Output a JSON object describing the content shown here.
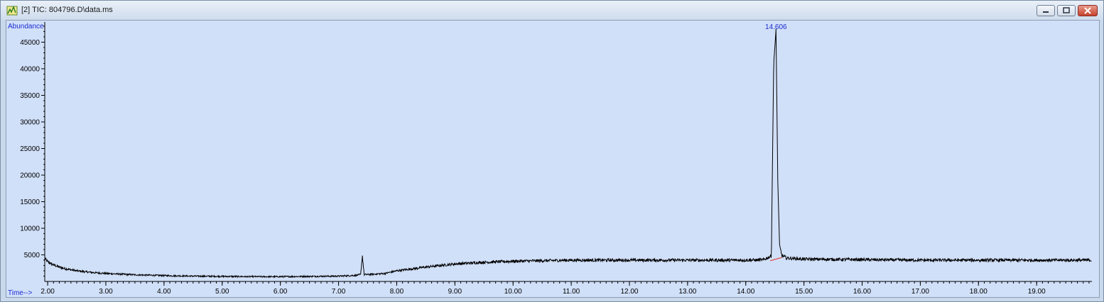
{
  "window": {
    "title": "[2] TIC: 804796.D\\data.ms",
    "icons": {
      "app": "chromatogram-app-icon",
      "minimize": "minimize-icon",
      "maximize": "maximize-icon",
      "close": "close-icon"
    },
    "colors": {
      "plot_background": "#d1e0f9",
      "trace": "#000000",
      "label_blue": "#1a2bd0",
      "baseline_marker": "#e0302a"
    }
  },
  "chart_data": {
    "type": "line",
    "ylabel": "Abundance",
    "xlabel": "Time-->",
    "xlim": [
      1.95,
      19.95
    ],
    "ylim": [
      0,
      48000
    ],
    "x_ticks": [
      2.0,
      3.0,
      4.0,
      5.0,
      6.0,
      7.0,
      8.0,
      9.0,
      10.0,
      11.0,
      12.0,
      13.0,
      14.0,
      15.0,
      16.0,
      17.0,
      18.0,
      19.0
    ],
    "x_tick_labels": [
      "2.00",
      "3.00",
      "4.00",
      "5.00",
      "6.00",
      "7.00",
      "8.00",
      "9.00",
      "10.00",
      "11.00",
      "12.00",
      "13.00",
      "14.00",
      "15.00",
      "16.00",
      "17.00",
      "18.00",
      "19.00"
    ],
    "y_ticks": [
      5000,
      10000,
      15000,
      20000,
      25000,
      30000,
      35000,
      40000,
      45000
    ],
    "y_tick_labels": [
      "5000",
      "10000",
      "15000",
      "20000",
      "25000",
      "30000",
      "35000",
      "40000",
      "45000"
    ],
    "series": [
      {
        "x": [
          1.95,
          2.0,
          2.1,
          2.2,
          2.3,
          2.5,
          2.75,
          3.0,
          3.5,
          4.0,
          4.5,
          5.0,
          5.5,
          6.0,
          6.5,
          7.0,
          7.3,
          7.38,
          7.41,
          7.44,
          7.5,
          7.8,
          8.0,
          8.5,
          9.0,
          9.5,
          10.0,
          10.5,
          11.0,
          12.0,
          13.0,
          14.0,
          14.3,
          14.44,
          14.48,
          14.52,
          14.55,
          14.58,
          14.62,
          14.7,
          15.0,
          16.0,
          17.0,
          18.0,
          19.0,
          19.95
        ],
        "y": [
          4300,
          3700,
          3100,
          2700,
          2400,
          2000,
          1700,
          1500,
          1250,
          1100,
          1000,
          950,
          900,
          900,
          950,
          1000,
          1150,
          1300,
          4800,
          1300,
          1300,
          1500,
          2000,
          2700,
          3300,
          3600,
          3800,
          3900,
          4000,
          4000,
          4000,
          4000,
          4050,
          4800,
          41000,
          47500,
          19000,
          7000,
          4900,
          4400,
          4200,
          4100,
          4000,
          4000,
          4000,
          4000
        ]
      }
    ],
    "peak_label": {
      "text": "14.606",
      "x": 14.52
    },
    "grid": false
  }
}
